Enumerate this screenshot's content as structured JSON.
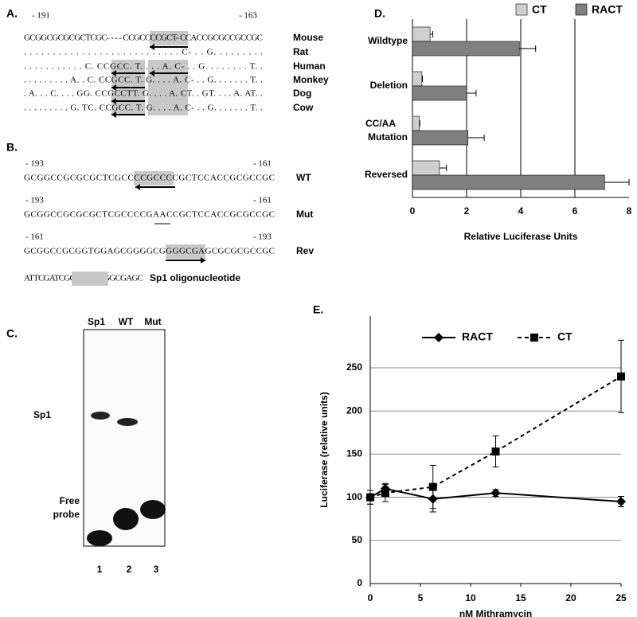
{
  "panel_a": {
    "label": "A.",
    "start": "- 191",
    "end": "- 163",
    "rows": [
      {
        "sequence": "GCGGCGCGCGCTCGC- - - - CCGCCCCGCT- CCACCGCGCCGCCGC",
        "species": "Mouse"
      },
      {
        "sequence": ". . . . . . . . . . . . . . . . . . . . . . . . . . . C- . . G. . . . . . . . .",
        "species": "Rat"
      },
      {
        "sequence": ". . . . . . . . . . . C. CCGCC. T. . . . A. C- . . G. . . . . . . . T. .",
        "species": "Human"
      },
      {
        "sequence": ". . . . . . . . . A. . C. CCGCC. T. G. . . . A. C- . . G. . . . . . . T. .",
        "species": "Monkey"
      },
      {
        "sequence": ". A. . . C. . . . GG. CCGCCTT. G. . . . A. CT. . GT. . . . A. AT. .",
        "species": "Dog"
      },
      {
        "sequence": ". . . . . . . . . G. TC. CCGCC. T. G. . . . A. C- . . G. . . . . . . T. .",
        "species": "Cow"
      }
    ]
  },
  "panel_b": {
    "label": "B.",
    "rows": [
      {
        "start": "- 193",
        "end": "- 161",
        "sequence": "GCGGCCGCGCGCTCGCCCCGCCCCGCTCCACCGCGCCGC",
        "name": "WT"
      },
      {
        "start": "- 193",
        "end": "- 161",
        "sequence": "GCGGCCGCGCGCTCGCCCCGAACCGCTCCACCGCGCCGC",
        "name": "Mut"
      },
      {
        "start": "- 161",
        "end": "- 193",
        "sequence": "GCGGCCGCGGTGGAGCGGGGCGGGGCGAGCGCGCGCCGC",
        "name": "Rev"
      }
    ],
    "oligo": {
      "sequence": "ATTCGATCGGGGCGGGGCGAGC",
      "name": "Sp1 oligonucleotide"
    }
  },
  "panel_c": {
    "label": "C.",
    "lanes": [
      "Sp1",
      "WT",
      "Mut"
    ],
    "band_labels": [
      "Sp1",
      "Free probe"
    ],
    "lane_numbers": [
      "1",
      "2",
      "3"
    ]
  },
  "chart_data": [
    {
      "type": "bar",
      "orientation": "horizontal",
      "panel_label": "D.",
      "xlabel": "Relative Luciferase Units",
      "categories": [
        "Wildtype",
        "Deletion",
        "CC/AA Mutation",
        "Reversed"
      ],
      "series": [
        {
          "name": "CT",
          "color": "#cfcfcf",
          "values": [
            0.65,
            0.35,
            0.25,
            1.0
          ],
          "errors": [
            0.1,
            0.02,
            0.02,
            0.25
          ]
        },
        {
          "name": "RACT",
          "color": "#808080",
          "values": [
            3.95,
            2.0,
            2.05,
            7.1
          ],
          "errors": [
            0.6,
            0.35,
            0.6,
            0.9
          ]
        }
      ],
      "xlim": [
        0,
        8
      ],
      "xticks": [
        0,
        2,
        4,
        6,
        8
      ],
      "grid": true,
      "legend": "top"
    },
    {
      "type": "line",
      "panel_label": "E.",
      "xlabel": "nM Mithramycin",
      "ylabel": "Luciferase (relative units)",
      "x": [
        0,
        1.5,
        6.25,
        12.5,
        25
      ],
      "series": [
        {
          "name": "RACT",
          "color": "#000000",
          "marker": "diamond",
          "dashed": false,
          "values": [
            100,
            110,
            98,
            105,
            95
          ],
          "errors": [
            8,
            6,
            15,
            4,
            6
          ]
        },
        {
          "name": "CT",
          "color": "#000000",
          "marker": "square",
          "dashed": true,
          "values": [
            100,
            105,
            112,
            153,
            240
          ],
          "errors": [
            8,
            10,
            25,
            18,
            42
          ]
        }
      ],
      "xlim": [
        0,
        25
      ],
      "xticks": [
        0,
        5,
        10,
        15,
        20,
        25
      ],
      "ylim": [
        0,
        310
      ],
      "yticks": [
        0,
        50,
        100,
        150,
        200,
        250
      ],
      "grid": true,
      "legend": "top"
    }
  ]
}
